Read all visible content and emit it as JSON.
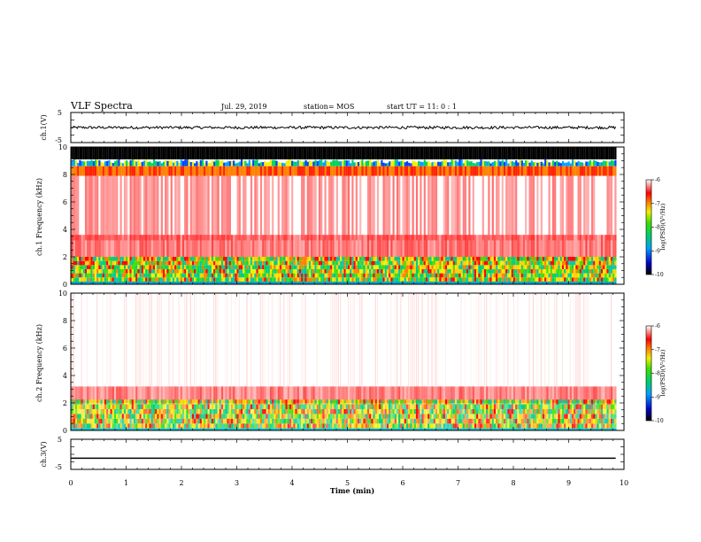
{
  "header": {
    "title": "VLF Spectra",
    "date": "Jul. 29, 2019",
    "station": "station= MOS",
    "start_ut": "start UT =  11: 0  : 1"
  },
  "chart_data": [
    {
      "id": "ch1-waveform",
      "type": "line",
      "ylabel": "ch.1(V)",
      "ylim": [
        -5,
        5
      ],
      "yticks": [
        "5",
        "-5"
      ],
      "xlim": [
        0,
        10
      ],
      "trace_level": 0,
      "trace_end_min": 9.85
    },
    {
      "id": "ch1-spectrogram",
      "type": "heatmap",
      "ylabel": "ch.1 Frequency (kHz)",
      "ylim": [
        0,
        10
      ],
      "yticks": [
        "0",
        "2",
        "4",
        "6",
        "8",
        "10"
      ],
      "xlim": [
        0,
        10
      ],
      "data_end_min": 9.85
    },
    {
      "id": "ch2-spectrogram",
      "type": "heatmap",
      "ylabel": "ch.2 Frequency (kHz)",
      "ylim": [
        0,
        10
      ],
      "yticks": [
        "0",
        "2",
        "4",
        "6",
        "8",
        "10"
      ],
      "xlim": [
        0,
        10
      ],
      "data_end_min": 9.85
    },
    {
      "id": "ch3-waveform",
      "type": "line",
      "ylabel": "ch.3(V)",
      "ylim": [
        -5,
        5
      ],
      "yticks": [
        "5",
        "-5"
      ],
      "xlim": [
        0,
        10
      ],
      "trace_level": -1.3,
      "trace_end_min": 9.85
    }
  ],
  "xaxis": {
    "label": "Time (min)",
    "ticks": [
      "0",
      "1",
      "2",
      "3",
      "4",
      "5",
      "6",
      "7",
      "8",
      "9",
      "10"
    ]
  },
  "colorbars": [
    {
      "id": "cb1",
      "label": "log(PSD)(V²/Hz)",
      "ticks": [
        "-6",
        "-7",
        "-8",
        "-9",
        "-10"
      ]
    },
    {
      "id": "cb2",
      "label": "log(PSD)(V²/Hz)",
      "ticks": [
        "-6",
        "-7",
        "-8",
        "-9",
        "-10"
      ]
    }
  ]
}
